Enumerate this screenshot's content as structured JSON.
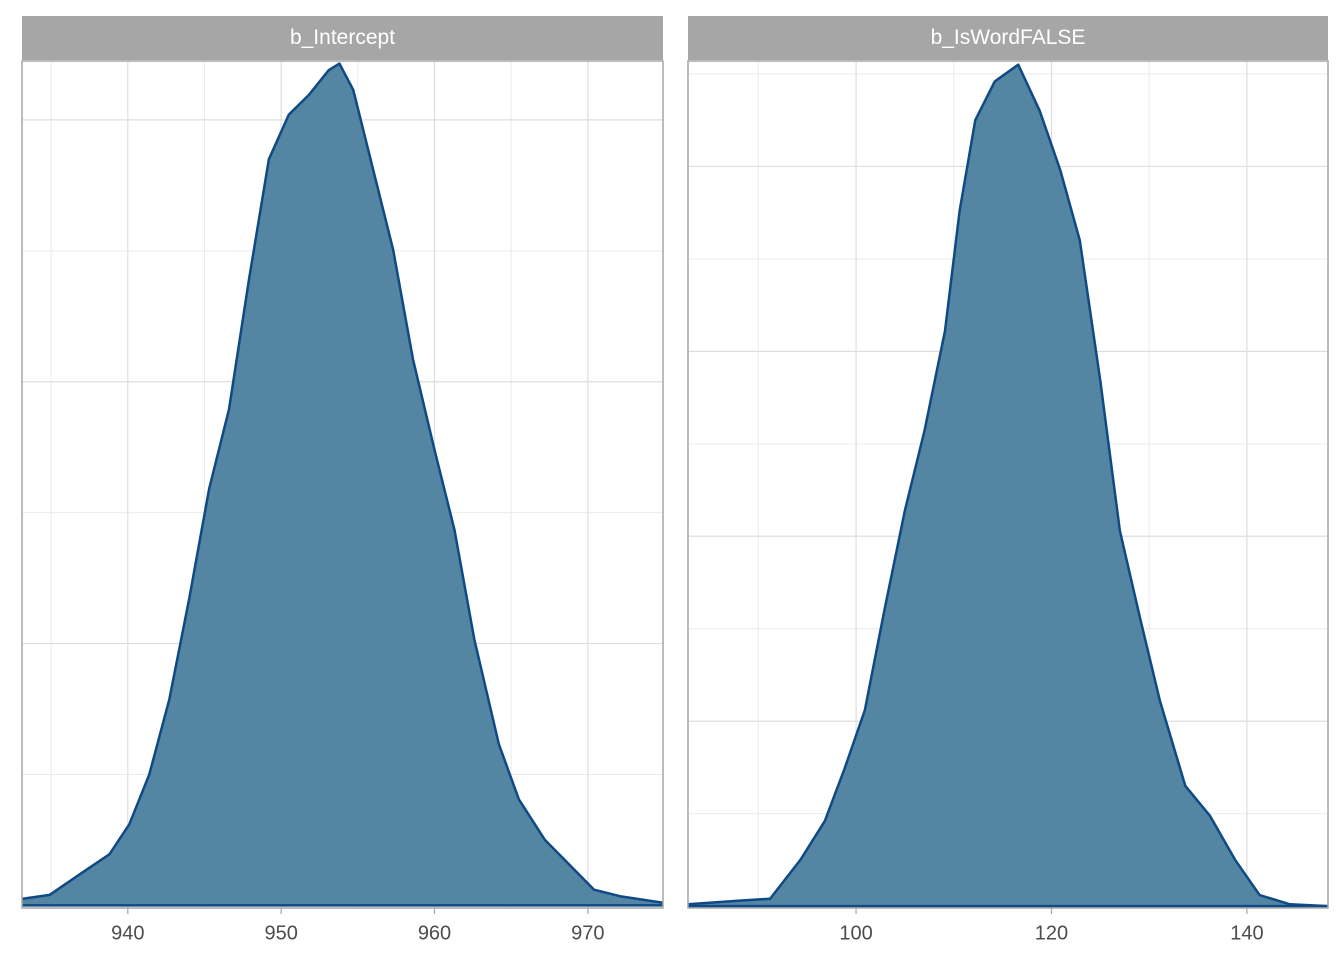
{
  "chart_data": [
    {
      "type": "area",
      "title": "b_Intercept",
      "fill": "#5485a3",
      "color": "#0f4a85",
      "grid": true,
      "x": [
        933.1,
        934.9,
        936.9,
        938.8,
        940.1,
        941.4,
        942.7,
        944.0,
        945.3,
        946.6,
        947.9,
        949.2,
        950.5,
        951.8,
        953.1,
        953.8,
        954.7,
        956.0,
        957.3,
        958.6,
        960.0,
        961.3,
        962.6,
        964.2,
        965.5,
        967.2,
        968.8,
        970.4,
        972.1,
        974.9
      ],
      "values": [
        0.0005,
        0.0008,
        0.0024,
        0.0039,
        0.0062,
        0.01,
        0.0157,
        0.0234,
        0.0318,
        0.0379,
        0.0478,
        0.057,
        0.0604,
        0.0619,
        0.0638,
        0.0643,
        0.0623,
        0.0562,
        0.0501,
        0.0417,
        0.0348,
        0.0287,
        0.0203,
        0.0123,
        0.0081,
        0.005,
        0.0031,
        0.0012,
        0.0007,
        0.0002
      ],
      "xlim": [
        933.1,
        974.9
      ],
      "xticks": [
        940,
        950,
        960,
        970
      ],
      "ylim": [
        -0.0002,
        0.0645
      ],
      "yticks": [
        0,
        0.02,
        0.04,
        0.06
      ]
    },
    {
      "type": "area",
      "title": "b_IsWordFALSE",
      "fill": "#5485a3",
      "color": "#0f4a85",
      "grid": true,
      "x": [
        82.8,
        88.1,
        91.2,
        94.3,
        96.8,
        98.8,
        100.9,
        102.9,
        105.0,
        107.0,
        109.1,
        110.6,
        112.2,
        114.2,
        116.6,
        118.8,
        120.9,
        122.9,
        125.0,
        127.0,
        129.1,
        131.1,
        133.7,
        136.2,
        138.8,
        141.3,
        144.4,
        148.3
      ],
      "values": [
        0.0001,
        0.0003,
        0.0004,
        0.0025,
        0.0046,
        0.0074,
        0.0106,
        0.016,
        0.0214,
        0.0257,
        0.0311,
        0.0376,
        0.0425,
        0.0446,
        0.0455,
        0.043,
        0.0398,
        0.036,
        0.0284,
        0.0203,
        0.0155,
        0.0111,
        0.0065,
        0.0049,
        0.0025,
        0.0006,
        0.0001,
        0
      ],
      "xlim": [
        82.8,
        148.3
      ],
      "xticks": [
        100,
        120,
        140
      ],
      "ylim": [
        -0.0001,
        0.0457
      ],
      "yticks": [
        0,
        0.01,
        0.02,
        0.03,
        0.04
      ]
    }
  ]
}
